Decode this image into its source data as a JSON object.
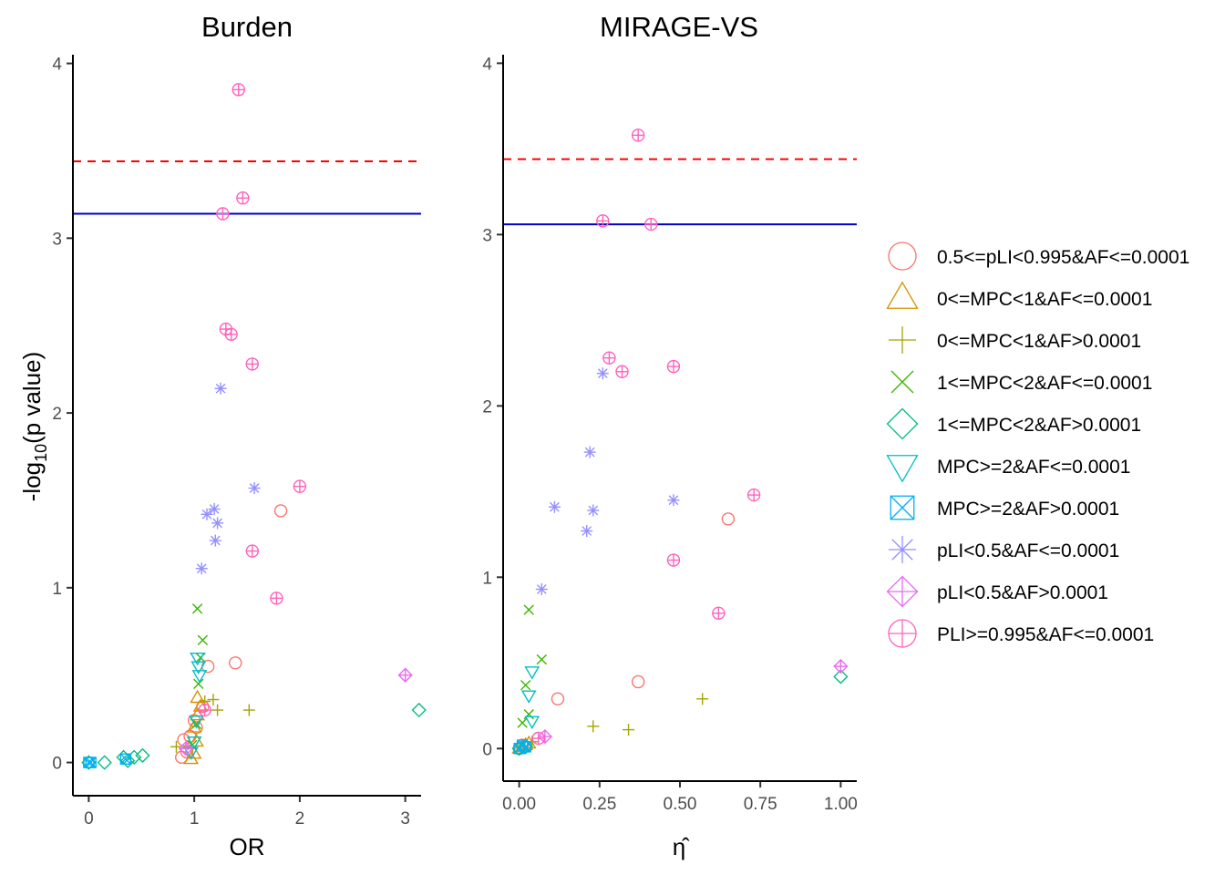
{
  "legend": {
    "items": [
      {
        "label": "0.5<=pLI<0.995&AF<=0.0001",
        "shape": "circle",
        "color": "#F8766D"
      },
      {
        "label": "0<=MPC<1&AF<=0.0001",
        "shape": "triangle",
        "color": "#D89000"
      },
      {
        "label": "0<=MPC<1&AF>0.0001",
        "shape": "plus",
        "color": "#A3A500"
      },
      {
        "label": "1<=MPC<2&AF<=0.0001",
        "shape": "cross",
        "color": "#39B600"
      },
      {
        "label": "1<=MPC<2&AF>0.0001",
        "shape": "diamond",
        "color": "#00BF7D"
      },
      {
        "label": "MPC>=2&AF<=0.0001",
        "shape": "triangle-down",
        "color": "#00BFC4"
      },
      {
        "label": "MPC>=2&AF>0.0001",
        "shape": "square-cross",
        "color": "#00B0F6"
      },
      {
        "label": "pLI<0.5&AF<=0.0001",
        "shape": "asterisk",
        "color": "#9590FF"
      },
      {
        "label": "pLI<0.5&AF>0.0001",
        "shape": "diamond-plus",
        "color": "#E76BF3"
      },
      {
        "label": "PLI>=0.995&AF<=0.0001",
        "shape": "circle-plus",
        "color": "#FF62BC"
      }
    ]
  },
  "chart_data": [
    {
      "type": "scatter",
      "title": "Burden",
      "xlabel": "OR",
      "ylabel": "-log10(p value)",
      "xlim": [
        -0.15,
        3.15
      ],
      "ylim": [
        -0.19,
        4.05
      ],
      "xticks": [
        0,
        1,
        2,
        3
      ],
      "yticks": [
        0,
        1,
        2,
        3,
        4
      ],
      "grid": false,
      "reference_lines": [
        {
          "y": 3.44,
          "color": "#FF0000",
          "style": "dashed"
        },
        {
          "y": 3.14,
          "color": "#0000CD",
          "style": "solid"
        }
      ],
      "series": [
        {
          "name": "0.5<=pLI<0.995&AF<=0.0001",
          "points": [
            [
              0.88,
              0.03
            ],
            [
              0.9,
              0.13
            ],
            [
              0.93,
              0.06
            ],
            [
              0.96,
              0.15
            ],
            [
              1.0,
              0.24
            ],
            [
              1.02,
              0.2
            ],
            [
              1.08,
              0.32
            ],
            [
              1.13,
              0.55
            ],
            [
              1.39,
              0.57
            ],
            [
              1.82,
              1.44
            ]
          ]
        },
        {
          "name": "0<=MPC<1&AF<=0.0001",
          "points": [
            [
              0.97,
              0.02
            ],
            [
              1.0,
              0.05
            ],
            [
              1.02,
              0.12
            ],
            [
              1.0,
              0.2
            ],
            [
              1.03,
              0.27
            ],
            [
              1.06,
              0.32
            ],
            [
              1.03,
              0.37
            ]
          ]
        },
        {
          "name": "0<=MPC<1&AF>0.0001",
          "points": [
            [
              0.83,
              0.09
            ],
            [
              1.1,
              0.35
            ],
            [
              1.18,
              0.36
            ],
            [
              1.22,
              0.3
            ],
            [
              1.52,
              0.3
            ]
          ]
        },
        {
          "name": "1<=MPC<2&AF<=0.0001",
          "points": [
            [
              0.98,
              0.1
            ],
            [
              1.02,
              0.22
            ],
            [
              1.04,
              0.45
            ],
            [
              1.06,
              0.6
            ],
            [
              1.08,
              0.7
            ],
            [
              1.03,
              0.88
            ]
          ]
        },
        {
          "name": "1<=MPC<2&AF>0.0001",
          "points": [
            [
              0.0,
              0.0
            ],
            [
              0.15,
              0.0
            ],
            [
              0.33,
              0.03
            ],
            [
              0.37,
              0.01
            ],
            [
              0.43,
              0.03
            ],
            [
              0.51,
              0.04
            ],
            [
              3.13,
              0.3
            ]
          ]
        },
        {
          "name": "MPC>=2&AF<=0.0001",
          "points": [
            [
              0.97,
              0.06
            ],
            [
              1.0,
              0.12
            ],
            [
              1.02,
              0.24
            ],
            [
              1.05,
              0.5
            ],
            [
              1.04,
              0.55
            ],
            [
              1.03,
              0.6
            ]
          ]
        },
        {
          "name": "MPC>=2&AF>0.0001",
          "points": [
            [
              0.0,
              0.0
            ],
            [
              0.02,
              0.0
            ],
            [
              0.35,
              0.02
            ]
          ]
        },
        {
          "name": "pLI<0.5&AF<=0.0001",
          "points": [
            [
              1.07,
              1.11
            ],
            [
              1.2,
              1.27
            ],
            [
              1.22,
              1.37
            ],
            [
              1.12,
              1.42
            ],
            [
              1.19,
              1.45
            ],
            [
              1.57,
              1.57
            ],
            [
              1.25,
              2.14
            ]
          ]
        },
        {
          "name": "pLI<0.5&AF>0.0001",
          "points": [
            [
              0.92,
              0.08
            ],
            [
              3.0,
              0.5
            ]
          ]
        },
        {
          "name": "PLI>=0.995&AF<=0.0001",
          "points": [
            [
              1.1,
              0.3
            ],
            [
              1.78,
              0.94
            ],
            [
              1.55,
              1.21
            ],
            [
              2.0,
              1.58
            ],
            [
              1.55,
              2.28
            ],
            [
              1.35,
              2.45
            ],
            [
              1.3,
              2.48
            ],
            [
              1.27,
              3.14
            ],
            [
              1.46,
              3.23
            ],
            [
              1.42,
              3.85
            ]
          ]
        }
      ]
    },
    {
      "type": "scatter",
      "title": "MIRAGE-VS",
      "xlabel": "η̂",
      "ylabel": "",
      "xlim": [
        -0.05,
        1.05
      ],
      "ylim": [
        -0.19,
        4.05
      ],
      "xticks": [
        0.0,
        0.25,
        0.5,
        0.75,
        1.0
      ],
      "xtick_labels": [
        "0.00",
        "0.25",
        "0.50",
        "0.75",
        "1.00"
      ],
      "yticks": [
        0,
        1,
        2,
        3,
        4
      ],
      "grid": false,
      "reference_lines": [
        {
          "y": 3.44,
          "color": "#FF0000",
          "style": "dashed"
        },
        {
          "y": 3.06,
          "color": "#0000CD",
          "style": "solid"
        }
      ],
      "series": [
        {
          "name": "0.5<=pLI<0.995&AF<=0.0001",
          "points": [
            [
              0.0,
              0.0
            ],
            [
              0.01,
              0.02
            ],
            [
              0.12,
              0.29
            ],
            [
              0.37,
              0.39
            ],
            [
              0.65,
              1.34
            ]
          ]
        },
        {
          "name": "0<=MPC<1&AF<=0.0001",
          "points": [
            [
              0.0,
              0.0
            ],
            [
              0.01,
              0.01
            ],
            [
              0.02,
              0.02
            ],
            [
              0.03,
              0.03
            ]
          ]
        },
        {
          "name": "0<=MPC<1&AF>0.0001",
          "points": [
            [
              0.04,
              0.04
            ],
            [
              0.23,
              0.13
            ],
            [
              0.34,
              0.11
            ],
            [
              0.57,
              0.29
            ]
          ]
        },
        {
          "name": "1<=MPC<2&AF<=0.0001",
          "points": [
            [
              0.01,
              0.15
            ],
            [
              0.02,
              0.37
            ],
            [
              0.03,
              0.2
            ],
            [
              0.03,
              0.81
            ],
            [
              0.07,
              0.52
            ]
          ]
        },
        {
          "name": "1<=MPC<2&AF>0.0001",
          "points": [
            [
              0.0,
              0.0
            ],
            [
              0.02,
              0.01
            ],
            [
              1.0,
              0.42
            ]
          ]
        },
        {
          "name": "MPC>=2&AF<=0.0001",
          "points": [
            [
              0.03,
              0.31
            ],
            [
              0.04,
              0.16
            ],
            [
              0.04,
              0.45
            ]
          ]
        },
        {
          "name": "MPC>=2&AF>0.0001",
          "points": [
            [
              0.0,
              0.0
            ],
            [
              0.01,
              0.02
            ],
            [
              0.02,
              0.01
            ]
          ]
        },
        {
          "name": "pLI<0.5&AF<=0.0001",
          "points": [
            [
              0.07,
              0.93
            ],
            [
              0.11,
              1.41
            ],
            [
              0.21,
              1.27
            ],
            [
              0.23,
              1.39
            ],
            [
              0.22,
              1.73
            ],
            [
              0.26,
              2.19
            ],
            [
              0.48,
              1.45
            ]
          ]
        },
        {
          "name": "pLI<0.5&AF>0.0001",
          "points": [
            [
              0.08,
              0.07
            ],
            [
              1.0,
              0.48
            ]
          ]
        },
        {
          "name": "PLI>=0.995&AF<=0.0001",
          "points": [
            [
              0.06,
              0.06
            ],
            [
              0.48,
              1.1
            ],
            [
              0.62,
              0.79
            ],
            [
              0.73,
              1.48
            ],
            [
              0.28,
              2.28
            ],
            [
              0.32,
              2.2
            ],
            [
              0.48,
              2.23
            ],
            [
              0.26,
              3.08
            ],
            [
              0.41,
              3.06
            ],
            [
              0.37,
              3.58
            ]
          ]
        }
      ]
    }
  ]
}
